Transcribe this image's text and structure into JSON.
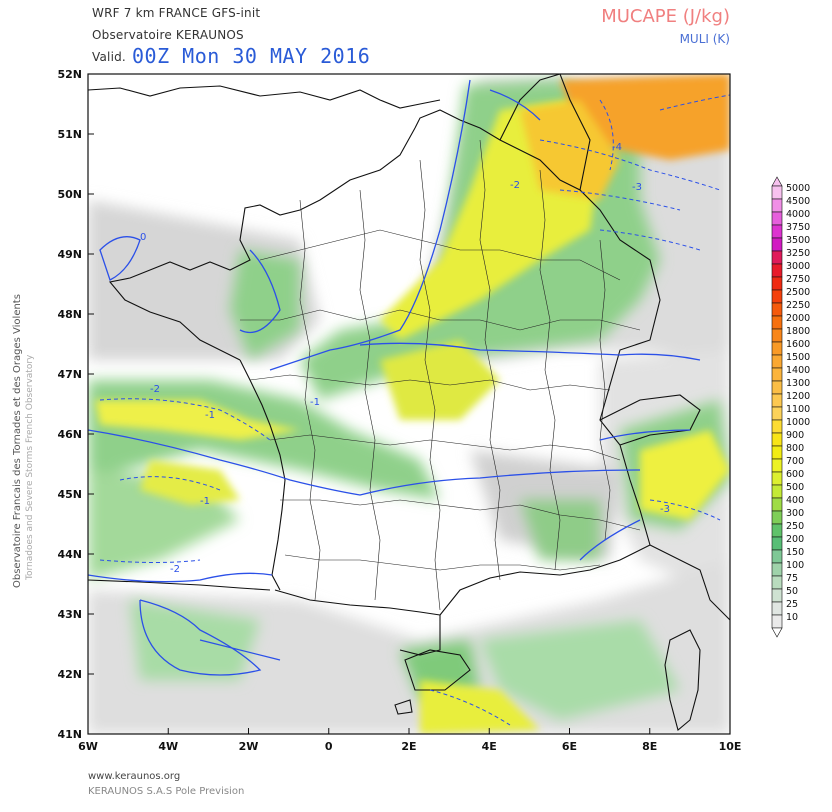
{
  "header": {
    "model_line": "WRF 7 km FRANCE   GFS-init",
    "organization": "Observatoire KERAUNOS",
    "valid_label": "Valid.",
    "valid_date": "00Z Mon 30 MAY 2016",
    "parameter_title": "MUCAPE (J/kg)",
    "parameter_subtitle": "MULI (K)"
  },
  "side_text": {
    "line1": "Observatoire Francais des Tornades et des Orages Violents",
    "line2": "Tornadoes and Severe Storms French Observatory"
  },
  "axes": {
    "lat_labels": [
      "52N",
      "51N",
      "50N",
      "49N",
      "48N",
      "47N",
      "46N",
      "45N",
      "44N",
      "43N",
      "42N",
      "41N"
    ],
    "lon_labels": [
      "6W",
      "4W",
      "2W",
      "0",
      "2E",
      "4E",
      "6E",
      "8E",
      "10E"
    ]
  },
  "contour_labels": [
    "-1",
    "-2",
    "-3",
    "-4",
    "0"
  ],
  "legend": {
    "levels": [
      "5000",
      "4500",
      "4000",
      "3750",
      "3500",
      "3250",
      "3000",
      "2750",
      "2500",
      "2250",
      "2000",
      "1800",
      "1600",
      "1500",
      "1400",
      "1300",
      "1200",
      "1100",
      "1000",
      "900",
      "800",
      "700",
      "600",
      "500",
      "400",
      "300",
      "250",
      "200",
      "150",
      "100",
      "75",
      "50",
      "25",
      "10"
    ],
    "colors": [
      "#f7c2ef",
      "#f08fe6",
      "#e65fdc",
      "#dd33d0",
      "#d21ac2",
      "#e01a5a",
      "#e81a2a",
      "#ef2a12",
      "#f4400c",
      "#f55a0c",
      "#f7700e",
      "#f8861a",
      "#f99a26",
      "#faa832",
      "#fbb43c",
      "#fbbe46",
      "#fcc850",
      "#fcd25a",
      "#fcdc34",
      "#f8e418",
      "#f2ec14",
      "#ecf224",
      "#dcef30",
      "#c4ea36",
      "#9fdc46",
      "#7fce58",
      "#5fc26a",
      "#58be76",
      "#7fc896",
      "#9fd2aa",
      "#b9dcbe",
      "#cfe2d2",
      "#e0e6e2",
      "#eaeaea"
    ]
  },
  "footer": {
    "website": "www.keraunos.org",
    "company": "KERAUNOS S.A.S Pole Prevision"
  },
  "colors": {
    "contour": "#2b50e8",
    "border": "#111111",
    "date_text": "#2a5bd7",
    "title_text": "#f08080"
  }
}
